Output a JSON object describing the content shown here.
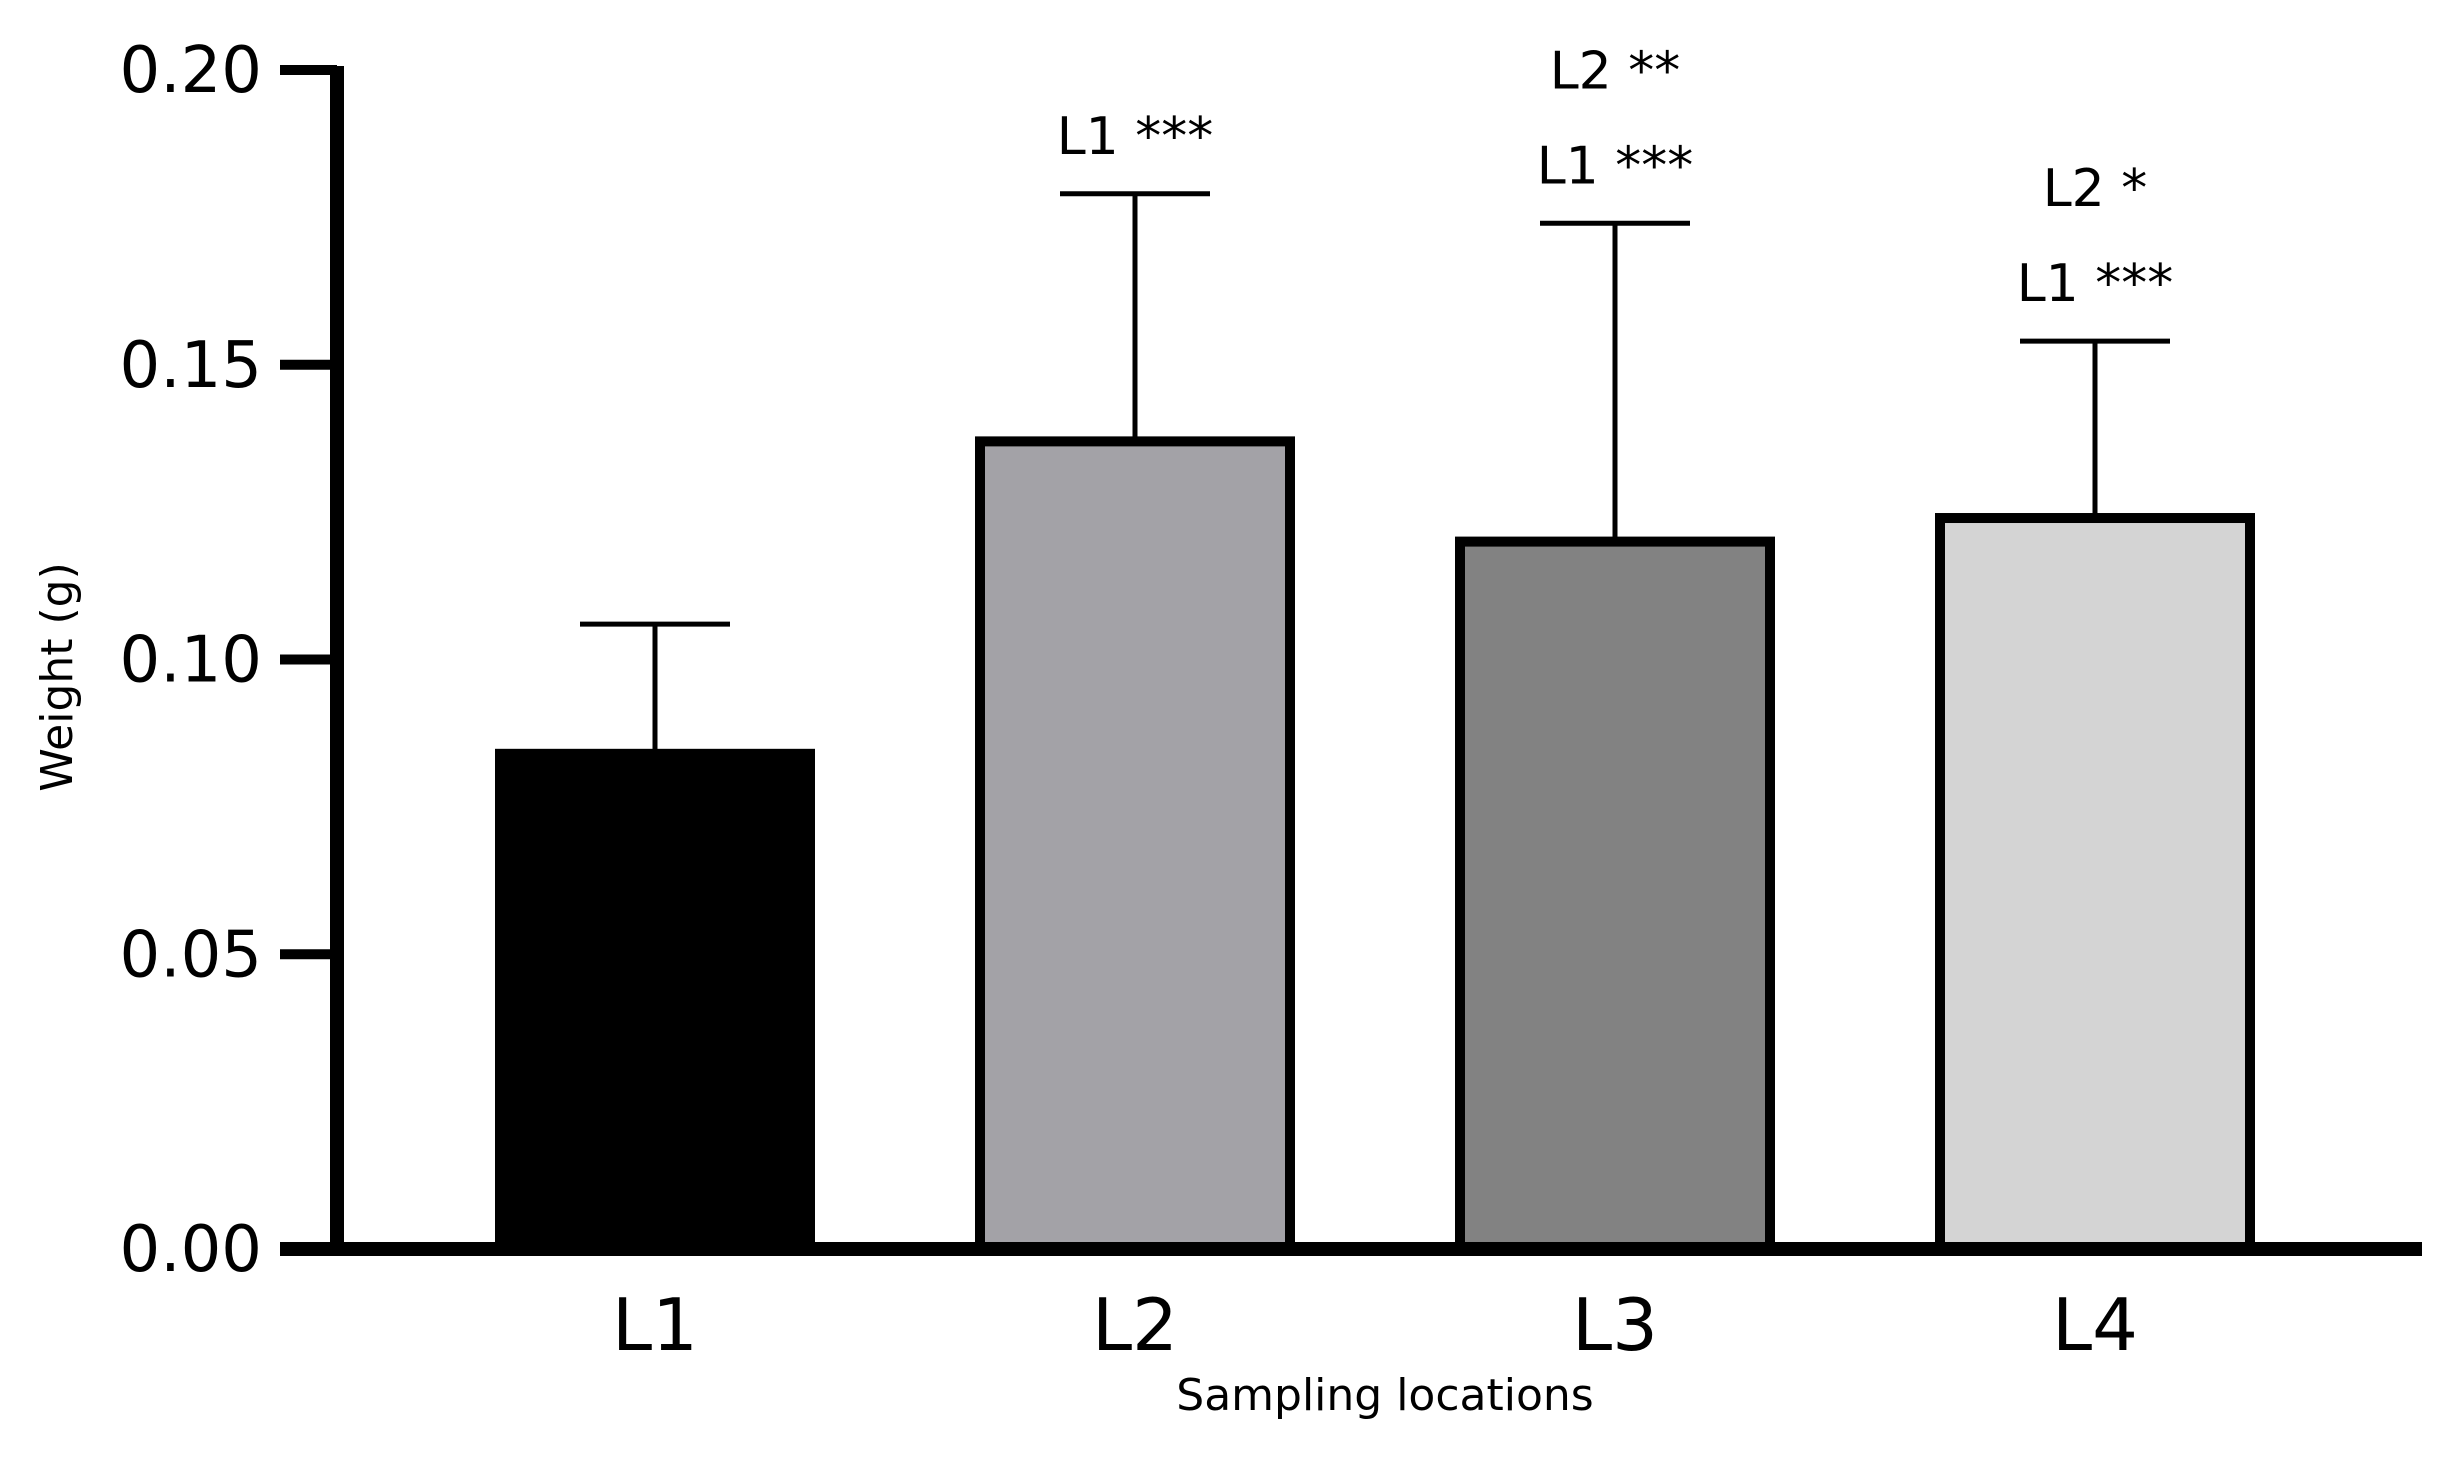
{
  "chart_data": {
    "type": "bar",
    "title": "",
    "xlabel": "Sampling locations",
    "ylabel": "Weight (g)",
    "categories": [
      "L1",
      "L2",
      "L3",
      "L4"
    ],
    "values": [
      0.084,
      0.137,
      0.12,
      0.124
    ],
    "error_upper": [
      0.106,
      0.179,
      0.174,
      0.154
    ],
    "ylim": [
      0,
      0.2
    ],
    "yticks": [
      "0.00",
      "0.05",
      "0.10",
      "0.15",
      "0.20"
    ],
    "grid": false,
    "legend": "none",
    "bar_colors": [
      "#000000",
      "#a3a2a7",
      "#828282",
      "#d4d4d4"
    ],
    "annotations": [
      {
        "category": "L2",
        "lines": [
          "L1 ***"
        ]
      },
      {
        "category": "L3",
        "lines": [
          "L2 **",
          "L1 ***"
        ]
      },
      {
        "category": "L4",
        "lines": [
          "L2 *",
          "L1 ***"
        ]
      }
    ]
  }
}
